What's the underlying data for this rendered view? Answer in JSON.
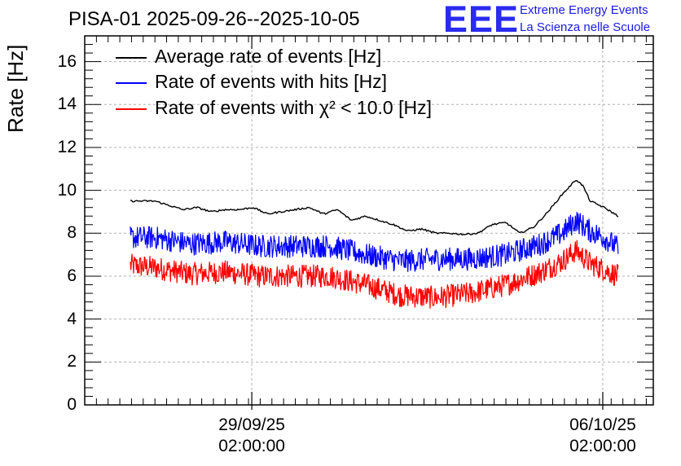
{
  "header": {
    "title": "PISA-01 2025-09-26--2025-10-05",
    "logo_text": "EEE",
    "brand_line1": "Extreme Energy Events",
    "brand_line2": "La Scienza nelle Scuole"
  },
  "chart_data": {
    "type": "line",
    "title": "PISA-01 2025-09-26--2025-10-05",
    "ylabel": "Rate [Hz]",
    "xlabel": "",
    "ylim": [
      0,
      17.2
    ],
    "xlim_days": [
      0,
      8.1
    ],
    "grid": true,
    "legend_position": "top-left",
    "y_ticks": [
      0,
      2,
      4,
      6,
      8,
      10,
      12,
      14,
      16
    ],
    "x_ticks": [
      {
        "day": 2.38,
        "date": "29/09/25",
        "time": "02:00:00"
      },
      {
        "day": 7.38,
        "date": "06/10/25",
        "time": "02:00:00"
      }
    ],
    "x_unit": "days since 2025-09-26 00:00",
    "series": [
      {
        "name": "Average rate of events [Hz]",
        "color": "#000000",
        "x": [
          0.65,
          1.0,
          1.2,
          1.4,
          1.6,
          1.8,
          2.0,
          2.2,
          2.4,
          2.6,
          2.8,
          3.0,
          3.2,
          3.4,
          3.6,
          3.8,
          4.0,
          4.2,
          4.4,
          4.6,
          4.8,
          5.0,
          5.2,
          5.4,
          5.6,
          5.8,
          6.0,
          6.2,
          6.4,
          6.6,
          6.8,
          7.0,
          7.1,
          7.2,
          7.4,
          7.6
        ],
        "values": [
          9.5,
          9.5,
          9.3,
          9.1,
          9.2,
          9.0,
          9.1,
          9.1,
          9.2,
          8.9,
          9.0,
          9.1,
          9.2,
          8.9,
          9.1,
          8.6,
          8.8,
          8.6,
          8.4,
          8.1,
          8.2,
          8.0,
          8.0,
          7.95,
          8.0,
          8.4,
          8.5,
          8.0,
          8.3,
          9.0,
          9.8,
          10.5,
          10.2,
          9.5,
          9.2,
          8.8
        ]
      },
      {
        "name": "Rate of events with hits [Hz]",
        "color": "#0000ff",
        "x": [
          0.65,
          1.0,
          1.5,
          2.0,
          2.5,
          3.0,
          3.5,
          4.0,
          4.5,
          5.0,
          5.5,
          6.0,
          6.5,
          6.8,
          7.0,
          7.2,
          7.4,
          7.6
        ],
        "values": [
          7.8,
          7.8,
          7.5,
          7.6,
          7.4,
          7.4,
          7.4,
          7.0,
          6.7,
          6.8,
          6.8,
          7.0,
          7.5,
          8.0,
          8.6,
          8.1,
          7.8,
          7.3
        ],
        "noise_amplitude": 0.55
      },
      {
        "name": "Rate of events with χ² < 10.0 [Hz]",
        "color": "#ff0000",
        "x": [
          0.65,
          1.0,
          1.5,
          2.0,
          2.5,
          3.0,
          3.5,
          4.0,
          4.5,
          5.0,
          5.5,
          6.0,
          6.5,
          6.8,
          7.0,
          7.2,
          7.4,
          7.6
        ],
        "values": [
          6.5,
          6.4,
          6.1,
          6.2,
          6.0,
          6.0,
          6.0,
          5.6,
          5.1,
          5.0,
          5.2,
          5.6,
          6.2,
          6.7,
          7.2,
          6.6,
          6.3,
          6.0
        ],
        "noise_amplitude": 0.55
      }
    ]
  },
  "legend": {
    "items": [
      {
        "label": "Average rate of events [Hz]",
        "color": "#000000"
      },
      {
        "label": "Rate of events with hits [Hz]",
        "color": "#0000ff"
      },
      {
        "label": "Rate of events with χ² < 10.0 [Hz]",
        "color": "#ff0000"
      }
    ]
  }
}
